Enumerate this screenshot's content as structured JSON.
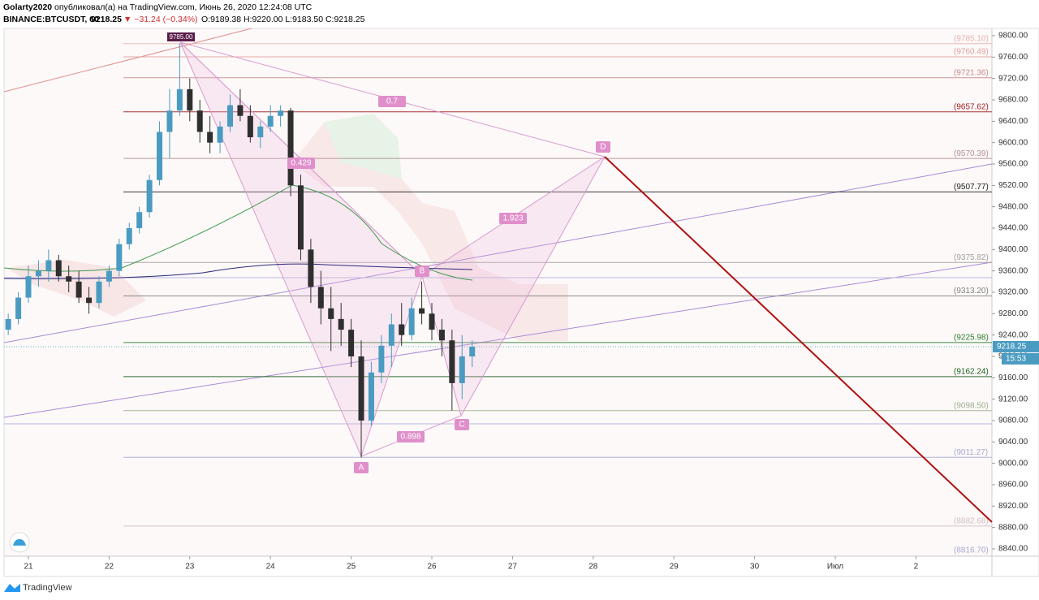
{
  "header": {
    "author": "Golarty2020",
    "published": "опубликовал(а) на TradingView.com, Июнь 26, 2020 12:24:08 UTC",
    "symbol": "BINANCE:BTCUSDT, 60",
    "last": "9218.25",
    "change": "▼ −31.24 (−0.34%)",
    "ohlc": "O:9189.38 H:9220.00 L:9183.50 C:9218.25"
  },
  "price_axis": {
    "ticks": [
      "9800.00",
      "9760.00",
      "9720.00",
      "9680.00",
      "9640.00",
      "9600.00",
      "9560.00",
      "9520.00",
      "9480.00",
      "9440.00",
      "9400.00",
      "9360.00",
      "9320.00",
      "9280.00",
      "9240.00",
      "9200.00",
      "9160.00",
      "9120.00",
      "9080.00",
      "9040.00",
      "9000.00",
      "8960.00",
      "8920.00",
      "8880.00",
      "8840.00"
    ],
    "last_price": "9218.25",
    "countdown": "15:53"
  },
  "time_axis": {
    "ticks": [
      "21",
      "22",
      "23",
      "24",
      "25",
      "26",
      "27",
      "28",
      "29",
      "30",
      "Июл",
      "2"
    ]
  },
  "levels": [
    {
      "label": "(9785.10)",
      "color": "#e5b3b3"
    },
    {
      "label": "(9760.49)",
      "color": "#e0a0a0"
    },
    {
      "label": "(9721.36)",
      "color": "#c98a8a"
    },
    {
      "label": "(9657.62)",
      "color": "#9a1c1c"
    },
    {
      "label": "(9570.39)",
      "color": "#b09090"
    },
    {
      "label": "(9507.77)",
      "color": "#222222"
    },
    {
      "label": "(9375.82)",
      "color": "#a0a0a0"
    },
    {
      "label": "(9313.20)",
      "color": "#808080"
    },
    {
      "label": "(9225.98)",
      "color": "#2e7d32"
    },
    {
      "label": "(9162.24)",
      "color": "#1b5e20"
    },
    {
      "label": "(9098.50)",
      "color": "#9ab090"
    },
    {
      "label": "(9011.27)",
      "color": "#a8a8d0"
    },
    {
      "label": "(8882.68)",
      "color": "#d0c0c0"
    },
    {
      "label": "(8816.70)",
      "color": "#a8a8d0"
    }
  ],
  "pattern": {
    "x_label": "9785.00",
    "points": [
      "A",
      "B",
      "C",
      "D"
    ],
    "ratios": [
      "0.7",
      "0.429",
      "1.923",
      "0.898"
    ]
  },
  "candles": [
    [
      9250,
      9280,
      9240,
      9270
    ],
    [
      9270,
      9320,
      9260,
      9310
    ],
    [
      9310,
      9370,
      9300,
      9350
    ],
    [
      9350,
      9380,
      9330,
      9360
    ],
    [
      9360,
      9400,
      9340,
      9380
    ],
    [
      9380,
      9390,
      9340,
      9350
    ],
    [
      9350,
      9370,
      9320,
      9340
    ],
    [
      9340,
      9360,
      9300,
      9310
    ],
    [
      9310,
      9330,
      9280,
      9300
    ],
    [
      9300,
      9350,
      9290,
      9340
    ],
    [
      9340,
      9370,
      9330,
      9360
    ],
    [
      9360,
      9420,
      9350,
      9410
    ],
    [
      9410,
      9450,
      9400,
      9440
    ],
    [
      9440,
      9480,
      9430,
      9470
    ],
    [
      9470,
      9540,
      9460,
      9530
    ],
    [
      9530,
      9640,
      9520,
      9620
    ],
    [
      9620,
      9700,
      9570,
      9660
    ],
    [
      9660,
      9785.1,
      9650,
      9700
    ],
    [
      9700,
      9720,
      9640,
      9660
    ],
    [
      9660,
      9680,
      9600,
      9620
    ],
    [
      9620,
      9650,
      9580,
      9600
    ],
    [
      9600,
      9640,
      9580,
      9630
    ],
    [
      9630,
      9690,
      9620,
      9670
    ],
    [
      9670,
      9700,
      9640,
      9650
    ],
    [
      9650,
      9670,
      9600,
      9610
    ],
    [
      9610,
      9640,
      9590,
      9630
    ],
    [
      9630,
      9670,
      9620,
      9650
    ],
    [
      9650,
      9670,
      9630,
      9660
    ],
    [
      9660,
      9665,
      9500,
      9520
    ],
    [
      9520,
      9540,
      9380,
      9400
    ],
    [
      9400,
      9420,
      9300,
      9330
    ],
    [
      9330,
      9360,
      9260,
      9290
    ],
    [
      9290,
      9330,
      9210,
      9270
    ],
    [
      9270,
      9300,
      9220,
      9250
    ],
    [
      9250,
      9270,
      9180,
      9200
    ],
    [
      9200,
      9230,
      9011.27,
      9080
    ],
    [
      9080,
      9190,
      9070,
      9170
    ],
    [
      9170,
      9240,
      9150,
      9220
    ],
    [
      9220,
      9280,
      9180,
      9260
    ],
    [
      9260,
      9300,
      9220,
      9240
    ],
    [
      9240,
      9310,
      9230,
      9290
    ],
    [
      9290,
      9340,
      9260,
      9280
    ],
    [
      9280,
      9300,
      9230,
      9250
    ],
    [
      9250,
      9270,
      9200,
      9230
    ],
    [
      9230,
      9250,
      9098.5,
      9150
    ],
    [
      9150,
      9240,
      9120,
      9200
    ],
    [
      9200,
      9230,
      9180,
      9218.25
    ]
  ],
  "footer": {
    "brand": "TradingView"
  }
}
